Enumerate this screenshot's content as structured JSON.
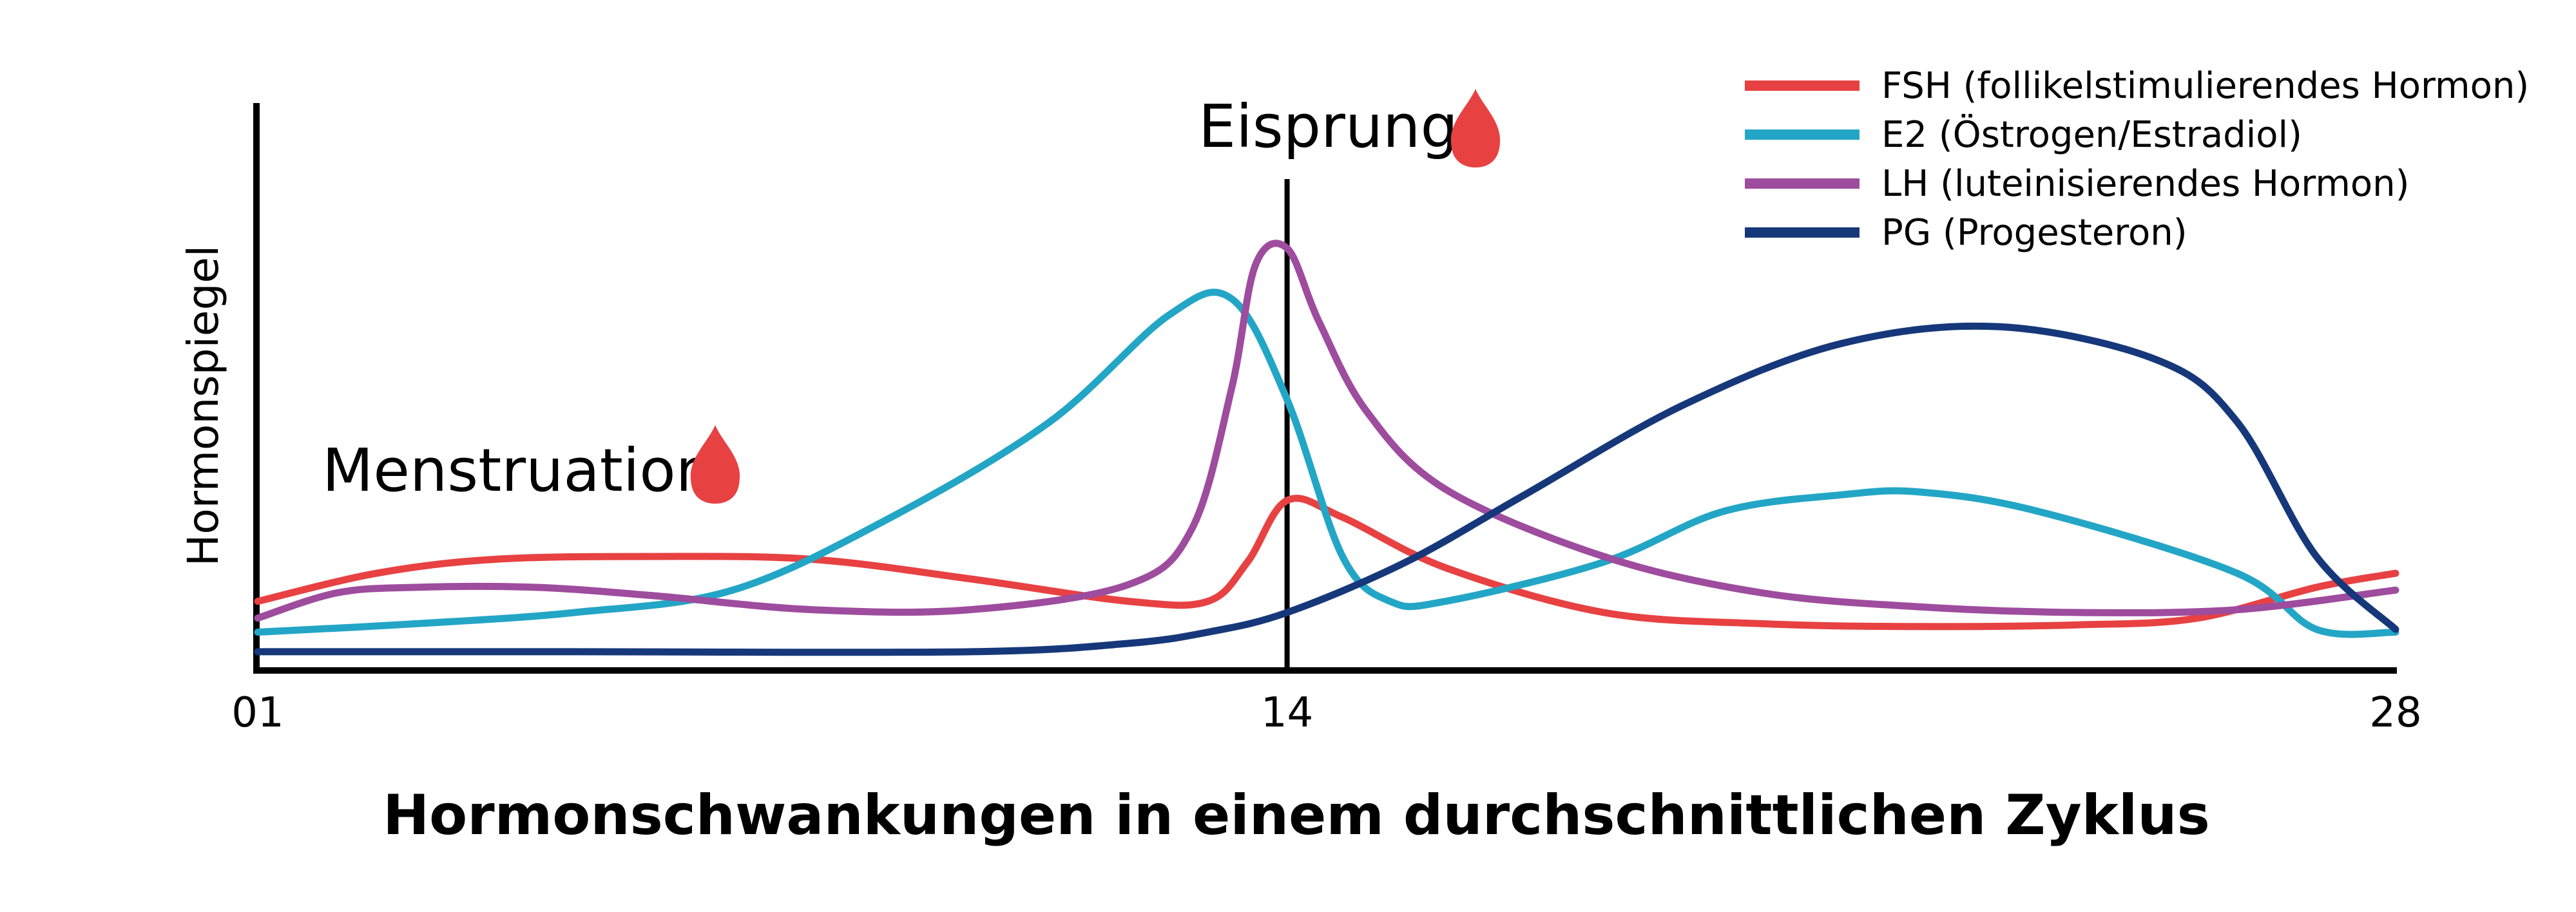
{
  "chart_data": {
    "type": "line",
    "title": "Hormonschwankungen in einem durchschnittlichen Zyklus",
    "ylabel": "Hormonspiegel",
    "xlabel": "",
    "x_ticks": [
      "01",
      "14",
      "28"
    ],
    "xlim": [
      1,
      28
    ],
    "ylim": [
      0,
      100
    ],
    "legend_position": "top-right",
    "annotations": [
      {
        "label": "Menstruation",
        "x": 1.8,
        "icon": "blood-drop-icon"
      },
      {
        "label": "Eisprung",
        "x": 14,
        "icon": "blood-drop-icon"
      }
    ],
    "ovulation_line_x": 14,
    "series": [
      {
        "name": "FSH (follikelstimulierendes Hormon)",
        "color": "#e84142",
        "points": [
          [
            1,
            12
          ],
          [
            2.5,
            17
          ],
          [
            4,
            19.5
          ],
          [
            6,
            20
          ],
          [
            8,
            19.5
          ],
          [
            10,
            16
          ],
          [
            12,
            12
          ],
          [
            13,
            12
          ],
          [
            13.5,
            19
          ],
          [
            14,
            30
          ],
          [
            14.7,
            27
          ],
          [
            16,
            18
          ],
          [
            18,
            10
          ],
          [
            20,
            8
          ],
          [
            22,
            7.5
          ],
          [
            24,
            7.8
          ],
          [
            25.5,
            9
          ],
          [
            27,
            14.5
          ],
          [
            28,
            17
          ]
        ]
      },
      {
        "name": "E2 (Östrogen/Estradiol)",
        "color": "#23a6c6",
        "points": [
          [
            1,
            6.5
          ],
          [
            3,
            8
          ],
          [
            5,
            10
          ],
          [
            7,
            14
          ],
          [
            9,
            27
          ],
          [
            11,
            44
          ],
          [
            12.5,
            63
          ],
          [
            13.3,
            66
          ],
          [
            14,
            48
          ],
          [
            14.7,
            20
          ],
          [
            15.3,
            12
          ],
          [
            16,
            12
          ],
          [
            18,
            19
          ],
          [
            19.5,
            28
          ],
          [
            21,
            31
          ],
          [
            22,
            31.5
          ],
          [
            23.5,
            28
          ],
          [
            26,
            17
          ],
          [
            27,
            7
          ],
          [
            28,
            6.5
          ]
        ]
      },
      {
        "name": "LH (luteinisierendes Hormon)",
        "color": "#9e4c9e",
        "points": [
          [
            1,
            9
          ],
          [
            2,
            13.5
          ],
          [
            3,
            14.5
          ],
          [
            4.5,
            14.5
          ],
          [
            6,
            13
          ],
          [
            8,
            10.5
          ],
          [
            10,
            10.5
          ],
          [
            12,
            15
          ],
          [
            12.8,
            25
          ],
          [
            13.3,
            50
          ],
          [
            13.6,
            72
          ],
          [
            14,
            75
          ],
          [
            14.4,
            62
          ],
          [
            15,
            46
          ],
          [
            16,
            32
          ],
          [
            18,
            20
          ],
          [
            20,
            13.5
          ],
          [
            22,
            11
          ],
          [
            24,
            10
          ],
          [
            26,
            10.5
          ],
          [
            28,
            14
          ]
        ]
      },
      {
        "name": "PG (Progesteron)",
        "color": "#16387a",
        "points": [
          [
            1,
            3
          ],
          [
            5,
            3
          ],
          [
            10,
            3
          ],
          [
            12,
            4.5
          ],
          [
            13,
            6.5
          ],
          [
            14,
            10
          ],
          [
            15.5,
            19
          ],
          [
            17,
            31
          ],
          [
            19,
            47
          ],
          [
            21,
            58
          ],
          [
            23,
            61
          ],
          [
            25,
            55
          ],
          [
            26,
            44
          ],
          [
            27,
            20
          ],
          [
            28,
            7
          ]
        ]
      }
    ]
  }
}
